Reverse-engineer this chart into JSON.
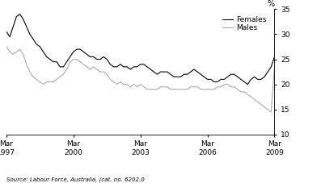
{
  "title": "",
  "ylabel": "%",
  "source_text": "Source: Labour Force, Australia, (cat. no. 6202.0",
  "ylim": [
    10,
    35
  ],
  "yticks": [
    10,
    15,
    20,
    25,
    30,
    35
  ],
  "female_color": "#000000",
  "male_color": "#aaaaaa",
  "legend_labels": [
    "Females",
    "Males"
  ],
  "start_year": 1997.1667,
  "end_year": 2009.1667,
  "x_tick_positions": [
    1997.1667,
    2000.1667,
    2003.1667,
    2006.1667,
    2009.1667
  ],
  "x_tick_labels": [
    "Mar\n1997",
    "Mar\n2000",
    "Mar\n2003",
    "Mar\n2006",
    "Mar\n2009"
  ],
  "females": [
    30.5,
    29.5,
    31.5,
    33.5,
    34.0,
    33.0,
    31.5,
    30.0,
    29.0,
    28.0,
    27.5,
    26.5,
    25.5,
    25.0,
    24.5,
    24.5,
    23.5,
    23.5,
    24.5,
    25.5,
    26.5,
    27.0,
    27.0,
    26.5,
    26.0,
    25.5,
    25.5,
    25.0,
    25.0,
    25.5,
    25.0,
    24.0,
    23.5,
    23.5,
    24.0,
    23.5,
    23.5,
    23.0,
    23.5,
    23.5,
    24.0,
    24.0,
    23.5,
    23.0,
    22.5,
    22.0,
    22.5,
    22.5,
    22.5,
    22.0,
    21.5,
    21.5,
    21.5,
    22.0,
    22.0,
    22.5,
    23.0,
    22.5,
    22.0,
    21.5,
    21.0,
    21.0,
    20.5,
    20.5,
    21.0,
    21.0,
    21.5,
    22.0,
    22.0,
    21.5,
    21.0,
    20.5,
    20.0,
    21.0,
    21.5,
    21.0,
    21.0,
    21.5,
    22.5,
    23.5,
    25.5
  ],
  "males": [
    27.5,
    26.5,
    26.0,
    26.5,
    27.0,
    26.0,
    24.0,
    22.5,
    21.5,
    21.0,
    20.5,
    20.0,
    20.5,
    20.5,
    20.5,
    21.0,
    21.5,
    22.0,
    23.0,
    24.5,
    25.0,
    25.0,
    24.5,
    24.0,
    23.5,
    23.0,
    23.5,
    23.0,
    22.5,
    22.5,
    22.0,
    21.0,
    20.5,
    20.0,
    20.5,
    20.0,
    20.0,
    19.5,
    20.0,
    19.5,
    20.0,
    19.5,
    19.0,
    19.0,
    19.0,
    19.0,
    19.5,
    19.5,
    19.5,
    19.0,
    19.0,
    19.0,
    19.0,
    19.0,
    19.0,
    19.5,
    19.5,
    19.5,
    19.0,
    19.0,
    19.0,
    19.0,
    19.0,
    19.5,
    19.5,
    20.0,
    20.0,
    19.5,
    19.5,
    19.0,
    18.5,
    18.5,
    18.0,
    17.5,
    17.0,
    16.5,
    16.0,
    15.5,
    15.0,
    14.5,
    23.5
  ]
}
